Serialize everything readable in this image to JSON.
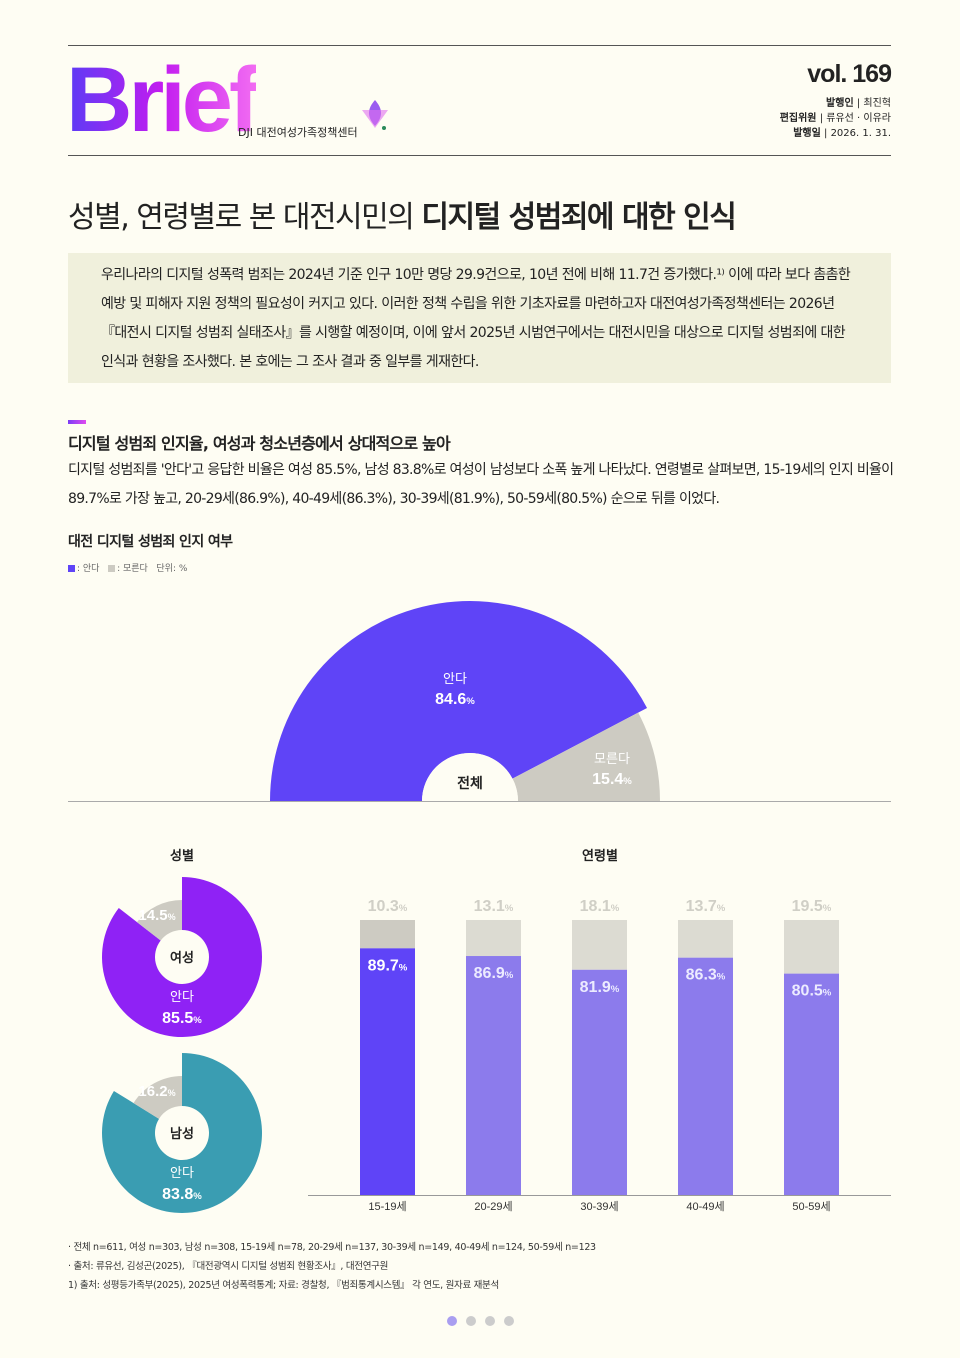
{
  "header": {
    "logo": "Brief",
    "org": "DJI 대전여성가족정책센터",
    "vol": "vol. 169",
    "publisher_label": "발행인",
    "publisher": "최진혁",
    "editors_label": "편집위원",
    "editors": "류유선 · 이유라",
    "date_label": "발행일",
    "date": "2026. 1. 31."
  },
  "title_light": "성별, 연령별로 본 대전시민의 ",
  "title_bold": "디지털 성범죄에 대한 인식",
  "intro": "우리나라의 디지털 성폭력 범죄는 2024년 기준 인구 10만 명당 29.9건으로, 10년 전에 비해 11.7건 증가했다.¹⁾ 이에 따라 보다 촘촘한 예방 및 피해자 지원 정책의 필요성이 커지고 있다. 이러한 정책 수립을 위한 기초자료를 마련하고자 대전여성가족정책센터는 2026년 『대전시 디지털 성범죄 실태조사』를 시행할 예정이며, 이에 앞서 2025년 시범연구에서는 대전시민을 대상으로 디지털 성범죄에 대한 인식과 현황을 조사했다. 본 호에는 그 조사 결과 중 일부를 게재한다.",
  "section": {
    "heading": "디지털 성범죄 인지율, 여성과 청소년층에서 상대적으로 높아",
    "body": "디지털 성범죄를 '안다'고 응답한 비율은 여성 85.5%, 남성 83.8%로 여성이 남성보다 소폭 높게 나타났다. 연령별로 살펴보면, 15-19세의 인지 비율이 89.7%로 가장 높고, 20-29세(86.9%), 40-49세(86.3%), 30-39세(81.9%), 50-59세(80.5%) 순으로 뒤를 이었다."
  },
  "chart_title": "대전 디지털 성범죄 인지 여부",
  "legend": {
    "know": ": 안다",
    "dont_know": ": 모른다",
    "unit": "단위: %"
  },
  "colors": {
    "know": "#5f44f7",
    "dont_know": "#cdcbc2",
    "female": "#8f22f5",
    "male": "#3a9db2",
    "bar_know_other": "#8c7bec",
    "bar_unknown": "#dcdbd2"
  },
  "chart_data": [
    {
      "type": "pie",
      "label": "전체",
      "slices": [
        {
          "name": "안다",
          "value": 84.6
        },
        {
          "name": "모른다",
          "value": 15.4
        }
      ]
    },
    {
      "type": "pie",
      "group": "성별",
      "label": "여성",
      "slices": [
        {
          "name": "안다",
          "value": 85.5
        },
        {
          "name": "모른다",
          "value": 14.5
        }
      ]
    },
    {
      "type": "pie",
      "group": "성별",
      "label": "남성",
      "slices": [
        {
          "name": "안다",
          "value": 83.8
        },
        {
          "name": "모른다",
          "value": 16.2
        }
      ]
    },
    {
      "type": "bar",
      "stacked": true,
      "title": "연령별",
      "categories": [
        "15-19세",
        "20-29세",
        "30-39세",
        "40-49세",
        "50-59세"
      ],
      "series": [
        {
          "name": "안다",
          "values": [
            89.7,
            86.9,
            81.9,
            86.3,
            80.5
          ]
        },
        {
          "name": "모른다",
          "values": [
            10.3,
            13.1,
            18.1,
            13.7,
            19.5
          ]
        }
      ],
      "ylim": [
        0,
        100
      ]
    }
  ],
  "labels": {
    "gender": "성별",
    "age": "연령별",
    "pct": "%"
  },
  "notes": [
    "· 전체 n=611, 여성 n=303, 남성 n=308, 15-19세 n=78, 20-29세 n=137, 30-39세 n=149, 40-49세 n=124, 50-59세 n=123",
    "· 출처: 류유선, 김성곤(2025), 『대전광역시 디지털 성범죄 현황조사』, 대전연구원",
    "1) 출처: 성평등가족부(2025), 2025년 여성폭력통계; 자료: 경찰청, 『범죄통계시스템』 각 연도, 원자료 재분석"
  ]
}
